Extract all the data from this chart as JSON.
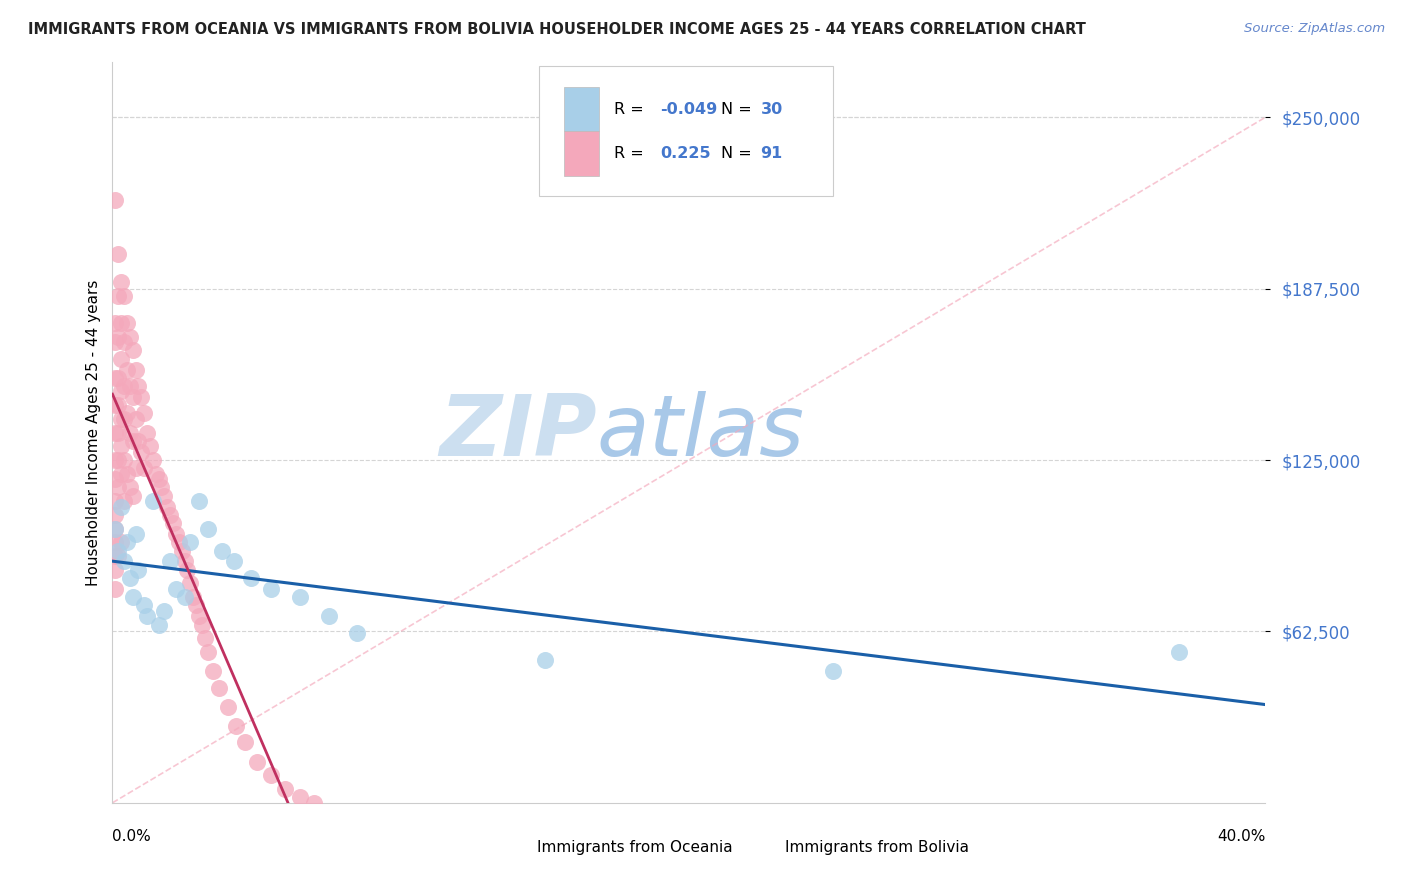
{
  "title": "IMMIGRANTS FROM OCEANIA VS IMMIGRANTS FROM BOLIVIA HOUSEHOLDER INCOME AGES 25 - 44 YEARS CORRELATION CHART",
  "source": "Source: ZipAtlas.com",
  "ylabel": "Householder Income Ages 25 - 44 years",
  "xmin": 0.0,
  "xmax": 0.4,
  "ymin": 0,
  "ymax": 270000,
  "ytick_vals": [
    62500,
    125000,
    187500,
    250000
  ],
  "ytick_labels": [
    "$62,500",
    "$125,000",
    "$187,500",
    "$250,000"
  ],
  "legend_r_oceania": "-0.049",
  "legend_n_oceania": "30",
  "legend_r_bolivia": "0.225",
  "legend_n_bolivia": "91",
  "oceania_scatter_color": "#a8cfe8",
  "bolivia_scatter_color": "#f4a8bb",
  "oceania_line_color": "#1a5fa8",
  "bolivia_line_color": "#c03060",
  "dashed_line_color": "#f4a8bb",
  "grid_color": "#d5d5d5",
  "ytick_color": "#4477cc",
  "source_color": "#6688cc",
  "watermark_color_zip": "#c8dff0",
  "watermark_color_atlas": "#b0cce8",
  "legend_border_color": "#cccccc",
  "oceania_x": [
    0.001,
    0.002,
    0.003,
    0.004,
    0.005,
    0.006,
    0.007,
    0.008,
    0.009,
    0.011,
    0.012,
    0.014,
    0.016,
    0.018,
    0.02,
    0.022,
    0.025,
    0.027,
    0.03,
    0.033,
    0.038,
    0.042,
    0.048,
    0.055,
    0.065,
    0.075,
    0.085,
    0.15,
    0.25,
    0.37
  ],
  "oceania_y": [
    100000,
    92000,
    108000,
    88000,
    95000,
    82000,
    75000,
    98000,
    85000,
    72000,
    68000,
    110000,
    65000,
    70000,
    88000,
    78000,
    75000,
    95000,
    110000,
    100000,
    92000,
    88000,
    82000,
    78000,
    75000,
    68000,
    62000,
    52000,
    48000,
    55000
  ],
  "bolivia_x": [
    0.001,
    0.001,
    0.001,
    0.001,
    0.001,
    0.001,
    0.001,
    0.001,
    0.001,
    0.001,
    0.001,
    0.001,
    0.001,
    0.001,
    0.001,
    0.002,
    0.002,
    0.002,
    0.002,
    0.002,
    0.002,
    0.002,
    0.002,
    0.002,
    0.003,
    0.003,
    0.003,
    0.003,
    0.003,
    0.003,
    0.003,
    0.003,
    0.004,
    0.004,
    0.004,
    0.004,
    0.004,
    0.004,
    0.005,
    0.005,
    0.005,
    0.005,
    0.006,
    0.006,
    0.006,
    0.006,
    0.007,
    0.007,
    0.007,
    0.007,
    0.008,
    0.008,
    0.008,
    0.009,
    0.009,
    0.01,
    0.01,
    0.011,
    0.011,
    0.012,
    0.013,
    0.014,
    0.015,
    0.016,
    0.017,
    0.018,
    0.019,
    0.02,
    0.021,
    0.022,
    0.023,
    0.024,
    0.025,
    0.026,
    0.027,
    0.028,
    0.029,
    0.03,
    0.031,
    0.032,
    0.033,
    0.035,
    0.037,
    0.04,
    0.043,
    0.046,
    0.05,
    0.055,
    0.06,
    0.065,
    0.07
  ],
  "bolivia_y": [
    220000,
    175000,
    168000,
    155000,
    145000,
    135000,
    125000,
    118000,
    110000,
    105000,
    100000,
    95000,
    90000,
    85000,
    78000,
    200000,
    185000,
    170000,
    155000,
    145000,
    135000,
    125000,
    115000,
    90000,
    190000,
    175000,
    162000,
    150000,
    140000,
    130000,
    120000,
    95000,
    185000,
    168000,
    152000,
    140000,
    125000,
    110000,
    175000,
    158000,
    142000,
    120000,
    170000,
    152000,
    135000,
    115000,
    165000,
    148000,
    132000,
    112000,
    158000,
    140000,
    122000,
    152000,
    132000,
    148000,
    128000,
    142000,
    122000,
    135000,
    130000,
    125000,
    120000,
    118000,
    115000,
    112000,
    108000,
    105000,
    102000,
    98000,
    95000,
    92000,
    88000,
    85000,
    80000,
    75000,
    72000,
    68000,
    65000,
    60000,
    55000,
    48000,
    42000,
    35000,
    28000,
    22000,
    15000,
    10000,
    5000,
    2000,
    0
  ]
}
